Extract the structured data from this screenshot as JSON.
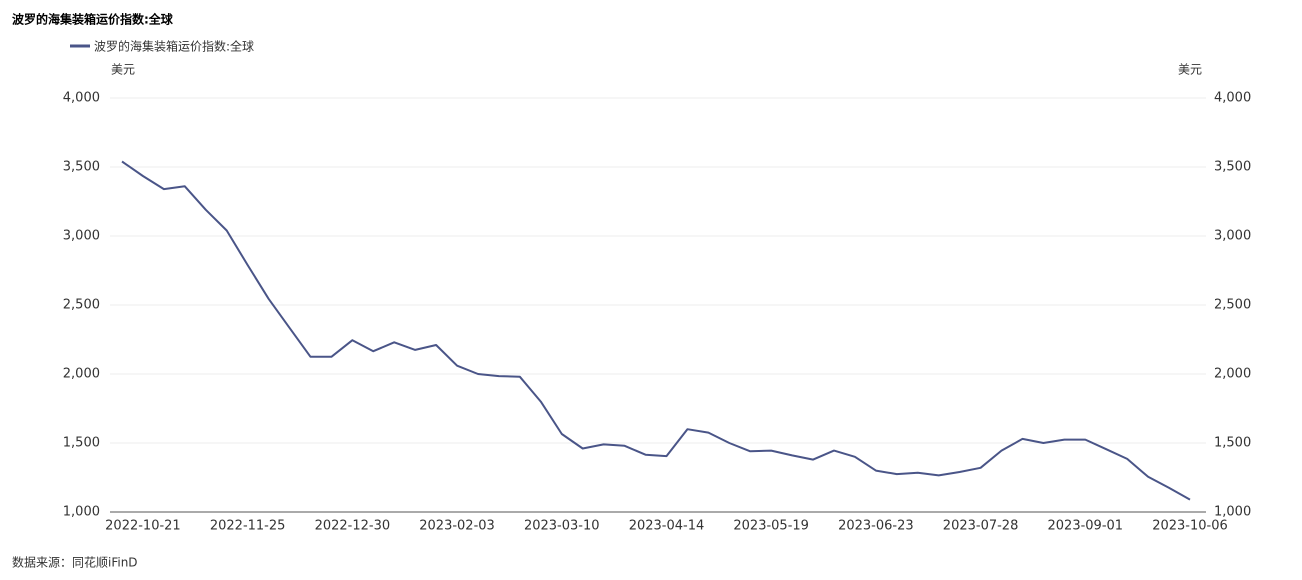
{
  "chart_data": {
    "type": "line",
    "title": "波罗的海集装箱运价指数:全球",
    "y_unit": "美元",
    "y2_unit": "美元",
    "source": "数据来源：同花顺iFinD",
    "categories": [
      null,
      "2022-10-21",
      null,
      null,
      null,
      null,
      "2022-11-25",
      null,
      null,
      null,
      null,
      "2022-12-30",
      null,
      null,
      null,
      null,
      "2023-02-03",
      null,
      null,
      null,
      null,
      "2023-03-10",
      null,
      null,
      null,
      null,
      "2023-04-14",
      null,
      null,
      null,
      null,
      "2023-05-19",
      null,
      null,
      null,
      null,
      "2023-06-23",
      null,
      null,
      null,
      null,
      "2023-07-28",
      null,
      null,
      null,
      null,
      "2023-09-01",
      null,
      null,
      null,
      null,
      "2023-10-06"
    ],
    "series": [
      {
        "name": "波罗的海集装箱运价指数:全球",
        "color": "#4a5588",
        "values": [
          3540,
          3435,
          3340,
          3360,
          3190,
          3040,
          2790,
          2545,
          2335,
          2125,
          2125,
          2245,
          2165,
          2230,
          2175,
          2210,
          2060,
          2000,
          1985,
          1980,
          1800,
          1565,
          1460,
          1490,
          1480,
          1415,
          1405,
          1600,
          1575,
          1500,
          1440,
          1445,
          1410,
          1380,
          1445,
          1400,
          1300,
          1275,
          1285,
          1265,
          1290,
          1320,
          1445,
          1530,
          1500,
          1525,
          1525,
          1455,
          1385,
          1255,
          1175,
          1090
        ]
      }
    ],
    "ylim": [
      1000,
      4000
    ],
    "yticks": [
      {
        "value": 1000,
        "label": "1,000"
      },
      {
        "value": 1500,
        "label": "1,500"
      },
      {
        "value": 2000,
        "label": "2,000"
      },
      {
        "value": 2500,
        "label": "2,500"
      },
      {
        "value": 3000,
        "label": "3,000"
      },
      {
        "value": 3500,
        "label": "3,500"
      },
      {
        "value": 4000,
        "label": "4,000"
      }
    ],
    "y2lim": [
      1000,
      4000
    ],
    "y2ticks": [
      {
        "value": 1000,
        "label": "1,000"
      },
      {
        "value": 1500,
        "label": "1,500"
      },
      {
        "value": 2000,
        "label": "2,000"
      },
      {
        "value": 2500,
        "label": "2,500"
      },
      {
        "value": 3000,
        "label": "3,000"
      },
      {
        "value": 3500,
        "label": "3,500"
      },
      {
        "value": 4000,
        "label": "4,000"
      }
    ],
    "grid": true
  }
}
